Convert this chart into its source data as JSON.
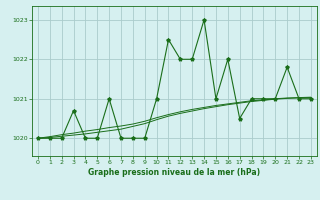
{
  "x": [
    0,
    1,
    2,
    3,
    4,
    5,
    6,
    7,
    8,
    9,
    10,
    11,
    12,
    13,
    14,
    15,
    16,
    17,
    18,
    19,
    20,
    21,
    22,
    23
  ],
  "y_main": [
    1020.0,
    1020.0,
    1020.0,
    1020.7,
    1020.0,
    1020.0,
    1021.0,
    1020.0,
    1020.0,
    1020.0,
    1021.0,
    1022.5,
    1022.0,
    1022.0,
    1023.0,
    1021.0,
    1022.0,
    1020.5,
    1021.0,
    1021.0,
    1021.0,
    1021.8,
    1021.0,
    1021.0
  ],
  "y_trend1": [
    1020.0,
    1020.04,
    1020.09,
    1020.13,
    1020.18,
    1020.22,
    1020.27,
    1020.31,
    1020.36,
    1020.43,
    1020.52,
    1020.6,
    1020.67,
    1020.73,
    1020.78,
    1020.83,
    1020.87,
    1020.91,
    1020.95,
    1020.97,
    1021.0,
    1021.02,
    1021.03,
    1021.04
  ],
  "y_trend2": [
    1020.0,
    1020.02,
    1020.05,
    1020.08,
    1020.11,
    1020.15,
    1020.19,
    1020.23,
    1020.3,
    1020.37,
    1020.47,
    1020.56,
    1020.63,
    1020.69,
    1020.75,
    1020.8,
    1020.85,
    1020.89,
    1020.93,
    1020.96,
    1020.99,
    1021.01,
    1021.02,
    1021.03
  ],
  "line_color": "#1a6e1a",
  "bg_color": "#d6f0f0",
  "grid_color": "#aacccc",
  "title": "Graphe pression niveau de la mer (hPa)",
  "ylim": [
    1019.55,
    1023.35
  ],
  "yticks": [
    1020,
    1021,
    1022,
    1023
  ],
  "xlim": [
    -0.5,
    23.5
  ],
  "xticks": [
    0,
    1,
    2,
    3,
    4,
    5,
    6,
    7,
    8,
    9,
    10,
    11,
    12,
    13,
    14,
    15,
    16,
    17,
    18,
    19,
    20,
    21,
    22,
    23
  ]
}
